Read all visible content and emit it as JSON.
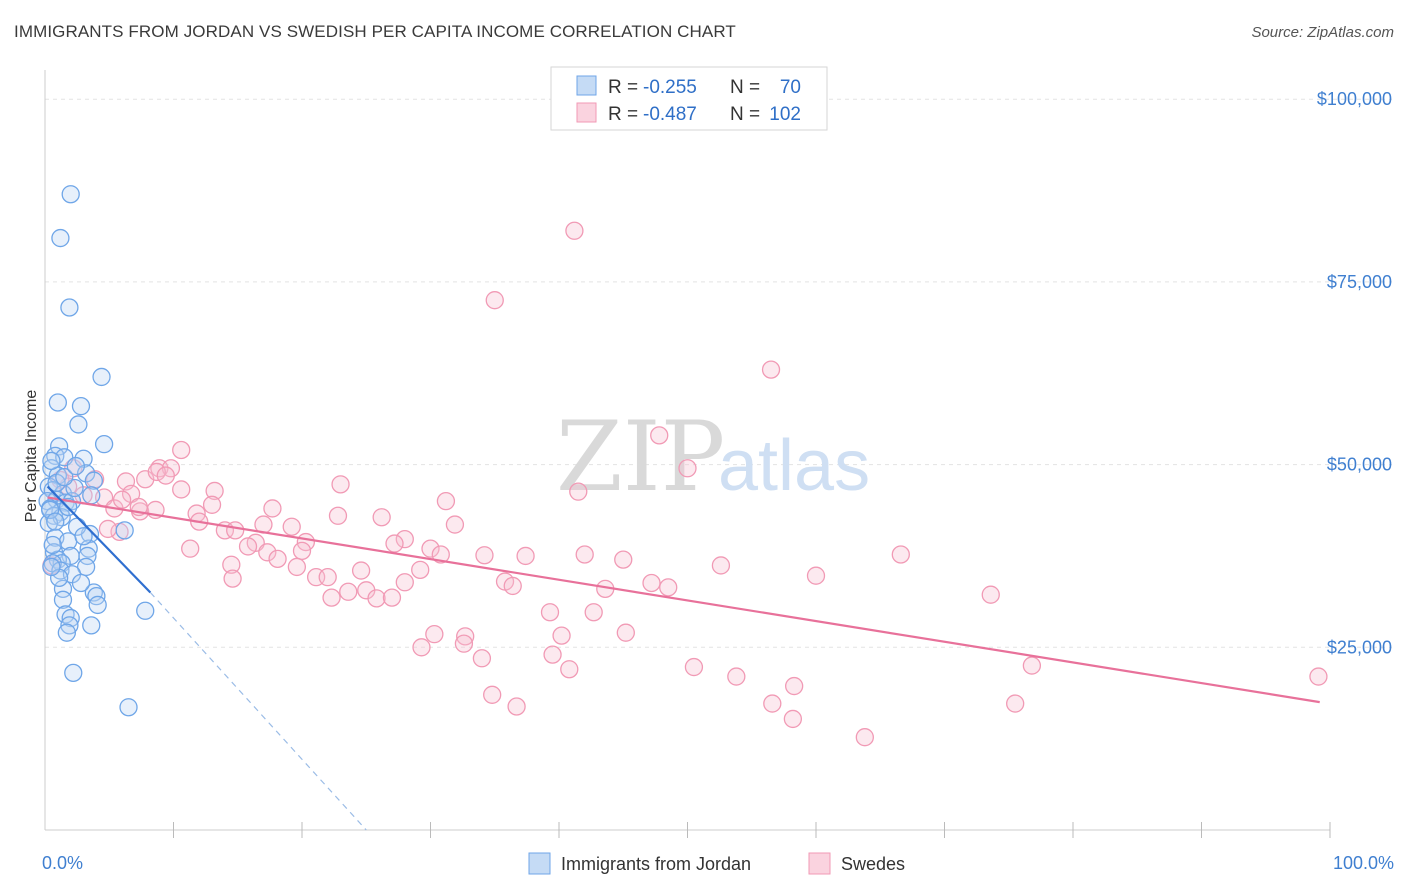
{
  "title": "IMMIGRANTS FROM JORDAN VS SWEDISH PER CAPITA INCOME CORRELATION CHART",
  "source": "Source: ZipAtlas.com",
  "watermark": {
    "zip": "ZIP",
    "atlas": "atlas"
  },
  "colors": {
    "jordan": "#6fa6e8",
    "jordan_line": "#2f6fd0",
    "swedes": "#f19ab5",
    "swedes_line": "#e8719a",
    "tick_text": "#3f7fd0",
    "grid": "#e3e3e3"
  },
  "legend": {
    "rows": [
      {
        "r_label": "R =",
        "r_value": "-0.255",
        "n_label": "N =",
        "n_value": "70"
      },
      {
        "r_label": "R =",
        "r_value": "-0.487",
        "n_label": "N =",
        "n_value": "102"
      }
    ]
  },
  "chart_data": {
    "type": "scatter",
    "title": "IMMIGRANTS FROM JORDAN VS SWEDISH PER CAPITA INCOME CORRELATION CHART",
    "xlabel": "",
    "ylabel": "Per Capita Income",
    "xlim": [
      0,
      100
    ],
    "ylim": [
      0,
      104000
    ],
    "x_tick_labels": [
      "0.0%",
      "100.0%"
    ],
    "y_ticks": [
      25000,
      50000,
      75000,
      100000
    ],
    "y_tick_labels": [
      "$25,000",
      "$50,000",
      "$75,000",
      "$100,000"
    ],
    "grid": true,
    "legend_position": "top-center",
    "series": [
      {
        "name": "Immigrants from Jordan",
        "color": "#6fa6e8",
        "trend": {
          "x": [
            0.2,
            8.2
          ],
          "y": [
            47000,
            32500
          ],
          "dashed_extension_to": [
            25,
            0
          ]
        },
        "points": [
          [
            2.0,
            87000
          ],
          [
            1.2,
            81000
          ],
          [
            1.9,
            71500
          ],
          [
            4.4,
            62000
          ],
          [
            1.0,
            58500
          ],
          [
            2.8,
            58000
          ],
          [
            2.6,
            55500
          ],
          [
            1.1,
            52500
          ],
          [
            4.6,
            52800
          ],
          [
            0.8,
            51200
          ],
          [
            1.5,
            51000
          ],
          [
            3.0,
            50800
          ],
          [
            0.5,
            49500
          ],
          [
            1.0,
            48500
          ],
          [
            3.2,
            48800
          ],
          [
            3.8,
            47800
          ],
          [
            0.3,
            47000
          ],
          [
            0.6,
            46500
          ],
          [
            1.4,
            46000
          ],
          [
            3.6,
            45800
          ],
          [
            0.2,
            45000
          ],
          [
            0.9,
            45200
          ],
          [
            1.6,
            44800
          ],
          [
            2.1,
            45000
          ],
          [
            0.4,
            44000
          ],
          [
            1.2,
            43500
          ],
          [
            0.7,
            43000
          ],
          [
            1.3,
            42800
          ],
          [
            0.3,
            42000
          ],
          [
            6.2,
            41000
          ],
          [
            0.8,
            40000
          ],
          [
            3.5,
            40500
          ],
          [
            1.8,
            39500
          ],
          [
            3.4,
            38500
          ],
          [
            0.7,
            38000
          ],
          [
            2.0,
            37500
          ],
          [
            1.0,
            37000
          ],
          [
            3.3,
            37500
          ],
          [
            1.3,
            36500
          ],
          [
            0.6,
            36500
          ],
          [
            3.2,
            36000
          ],
          [
            1.2,
            35500
          ],
          [
            2.1,
            35000
          ],
          [
            1.4,
            33000
          ],
          [
            3.8,
            32500
          ],
          [
            4.0,
            32000
          ],
          [
            1.4,
            31500
          ],
          [
            7.8,
            30000
          ],
          [
            1.6,
            29500
          ],
          [
            2.0,
            29000
          ],
          [
            4.1,
            30800
          ],
          [
            1.9,
            28000
          ],
          [
            3.6,
            28000
          ],
          [
            1.7,
            27000
          ],
          [
            2.2,
            21500
          ],
          [
            6.5,
            16800
          ],
          [
            0.5,
            50500
          ],
          [
            0.9,
            47500
          ],
          [
            2.3,
            46800
          ],
          [
            0.4,
            43800
          ],
          [
            1.8,
            44200
          ],
          [
            2.5,
            41500
          ],
          [
            0.6,
            39000
          ],
          [
            1.1,
            34500
          ],
          [
            2.8,
            33800
          ],
          [
            3.0,
            40200
          ],
          [
            0.5,
            36000
          ],
          [
            1.5,
            48300
          ],
          [
            2.4,
            49800
          ],
          [
            0.8,
            42200
          ]
        ]
      },
      {
        "name": "Swedes",
        "color": "#f19ab5",
        "trend": {
          "x": [
            0.2,
            99.2
          ],
          "y": [
            45500,
            17500
          ]
        },
        "points": [
          [
            41.2,
            82000
          ],
          [
            35.0,
            72500
          ],
          [
            56.5,
            63000
          ],
          [
            47.8,
            54000
          ],
          [
            10.6,
            52000
          ],
          [
            50.0,
            49500
          ],
          [
            8.9,
            49500
          ],
          [
            9.8,
            49500
          ],
          [
            2.2,
            49500
          ],
          [
            1.8,
            47000
          ],
          [
            3.9,
            48000
          ],
          [
            6.3,
            47700
          ],
          [
            7.8,
            48000
          ],
          [
            8.7,
            49000
          ],
          [
            23.0,
            47300
          ],
          [
            10.6,
            46600
          ],
          [
            13.2,
            46400
          ],
          [
            4.6,
            45500
          ],
          [
            6.7,
            46000
          ],
          [
            41.5,
            46300
          ],
          [
            31.2,
            45000
          ],
          [
            13.0,
            44500
          ],
          [
            17.7,
            44000
          ],
          [
            5.4,
            44000
          ],
          [
            7.4,
            43600
          ],
          [
            8.6,
            43800
          ],
          [
            11.8,
            43300
          ],
          [
            22.8,
            43000
          ],
          [
            26.2,
            42800
          ],
          [
            12.0,
            42200
          ],
          [
            17.0,
            41800
          ],
          [
            19.2,
            41500
          ],
          [
            31.9,
            41800
          ],
          [
            14.0,
            41000
          ],
          [
            14.8,
            41000
          ],
          [
            5.8,
            40800
          ],
          [
            4.9,
            41200
          ],
          [
            28.0,
            39800
          ],
          [
            20.3,
            39400
          ],
          [
            16.4,
            39300
          ],
          [
            27.2,
            39200
          ],
          [
            15.8,
            38800
          ],
          [
            11.3,
            38500
          ],
          [
            20.0,
            38200
          ],
          [
            17.3,
            38000
          ],
          [
            30.0,
            38500
          ],
          [
            30.8,
            37700
          ],
          [
            42.0,
            37700
          ],
          [
            66.6,
            37700
          ],
          [
            34.2,
            37600
          ],
          [
            37.4,
            37500
          ],
          [
            18.1,
            37100
          ],
          [
            52.6,
            36200
          ],
          [
            14.5,
            36300
          ],
          [
            19.6,
            36000
          ],
          [
            24.6,
            35500
          ],
          [
            29.2,
            35600
          ],
          [
            21.1,
            34600
          ],
          [
            22.0,
            34600
          ],
          [
            60.0,
            34800
          ],
          [
            14.6,
            34400
          ],
          [
            28.0,
            33900
          ],
          [
            35.8,
            34000
          ],
          [
            47.2,
            33800
          ],
          [
            36.4,
            33400
          ],
          [
            48.5,
            33200
          ],
          [
            23.6,
            32600
          ],
          [
            25.0,
            32800
          ],
          [
            43.6,
            33000
          ],
          [
            73.6,
            32200
          ],
          [
            22.3,
            31800
          ],
          [
            25.8,
            31700
          ],
          [
            27.0,
            31800
          ],
          [
            39.3,
            29800
          ],
          [
            42.7,
            29800
          ],
          [
            32.7,
            26500
          ],
          [
            30.3,
            26800
          ],
          [
            32.6,
            25500
          ],
          [
            40.2,
            26600
          ],
          [
            45.2,
            27000
          ],
          [
            29.3,
            25000
          ],
          [
            34.0,
            23500
          ],
          [
            39.5,
            24000
          ],
          [
            50.5,
            22300
          ],
          [
            40.8,
            22000
          ],
          [
            53.8,
            21000
          ],
          [
            76.8,
            22500
          ],
          [
            58.3,
            19700
          ],
          [
            34.8,
            18500
          ],
          [
            36.7,
            16900
          ],
          [
            56.6,
            17300
          ],
          [
            75.5,
            17300
          ],
          [
            58.2,
            15200
          ],
          [
            63.8,
            12700
          ],
          [
            99.1,
            21000
          ],
          [
            7.3,
            44200
          ],
          [
            3.0,
            45800
          ],
          [
            6.0,
            45200
          ],
          [
            9.4,
            48500
          ],
          [
            1.2,
            47900
          ],
          [
            0.5,
            36200
          ],
          [
            45.0,
            37000
          ]
        ]
      }
    ]
  },
  "bottom_legend": [
    {
      "label": "Immigrants from Jordan"
    },
    {
      "label": "Swedes"
    }
  ]
}
